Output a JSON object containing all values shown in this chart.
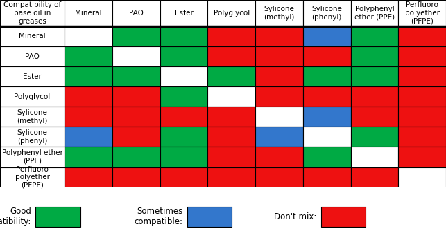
{
  "col_labels": [
    "Mineral",
    "PAO",
    "Ester",
    "Polyglycol",
    "Sylicone\n(methyl)",
    "Sylicone\n(phenyl)",
    "Polyphenyl\nether (PPE)",
    "Perfluoro\npolyether\n(PFPE)"
  ],
  "row_labels": [
    "Mineral",
    "PAO",
    "Ester",
    "Polyglycol",
    "Sylicone\n(methyl)",
    "Sylicone\n(phenyl)",
    "Polyphenyl ether\n(PPE)",
    "Perfluoro\npolyether\n(PFPE)"
  ],
  "header_label": "Compatibility of\nbase oil in\ngreases",
  "grid": [
    [
      "W",
      "G",
      "G",
      "R",
      "R",
      "B",
      "G",
      "R"
    ],
    [
      "G",
      "W",
      "G",
      "R",
      "R",
      "R",
      "G",
      "R"
    ],
    [
      "G",
      "G",
      "W",
      "G",
      "R",
      "G",
      "G",
      "R"
    ],
    [
      "R",
      "R",
      "G",
      "W",
      "R",
      "R",
      "R",
      "R"
    ],
    [
      "R",
      "R",
      "R",
      "R",
      "W",
      "B",
      "R",
      "R"
    ],
    [
      "B",
      "R",
      "G",
      "R",
      "B",
      "W",
      "G",
      "R"
    ],
    [
      "G",
      "G",
      "G",
      "R",
      "R",
      "G",
      "W",
      "R"
    ],
    [
      "R",
      "R",
      "R",
      "R",
      "R",
      "R",
      "R",
      "W"
    ]
  ],
  "colors": {
    "W": "#ffffff",
    "G": "#00aa44",
    "R": "#ee1111",
    "B": "#3377cc"
  },
  "legend": [
    {
      "label": "Good\ncompatibility:",
      "color": "#00aa44"
    },
    {
      "label": "Sometimes\ncompatible:",
      "color": "#3377cc"
    },
    {
      "label": "Don't mix:",
      "color": "#ee1111"
    }
  ],
  "grid_line_color": "#000000",
  "header_bg": "#ffffff",
  "text_color": "#000000",
  "bold_line_row": 1,
  "font_size_header": 7.5,
  "font_size_col": 7.5,
  "font_size_row": 7.5,
  "font_size_legend": 8.5
}
